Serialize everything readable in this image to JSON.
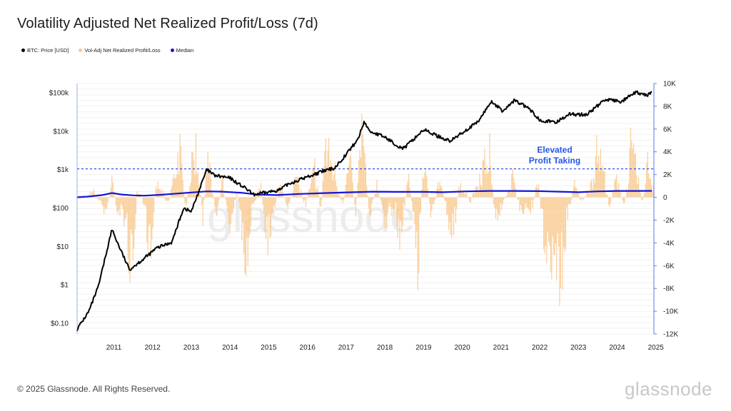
{
  "title": "Volatility Adjusted Net Realized Profit/Loss (7d)",
  "legend": [
    {
      "label": "BTC: Price [USD]",
      "color": "#000000"
    },
    {
      "label": "Vol-Adj Net Realized Profit/Loss",
      "color": "#f9c98e"
    },
    {
      "label": "Median",
      "color": "#1515d8"
    }
  ],
  "footer": "© 2025 Glassnode. All Rights Reserved.",
  "brand": "glassnode",
  "chart_data": {
    "type": "line",
    "title": "Volatility Adjusted Net Realized Profit/Loss (7d)",
    "x_ticks": [
      "2011",
      "2012",
      "2013",
      "2014",
      "2015",
      "2016",
      "2017",
      "2018",
      "2019",
      "2020",
      "2021",
      "2022",
      "2023",
      "2024",
      "2025"
    ],
    "y_left": {
      "scale": "log",
      "ticks": [
        "$100k",
        "$10k",
        "$1k",
        "$100",
        "$10",
        "$1",
        "$0.10"
      ],
      "range": [
        0.1,
        100000
      ]
    },
    "y_right": {
      "ticks": [
        "10K",
        "8K",
        "6K",
        "4K",
        "2K",
        "0",
        "-2K",
        "-4K",
        "-6K",
        "-8K",
        "-10K",
        "-12K"
      ],
      "range": [
        -12000,
        10000
      ]
    },
    "threshold": {
      "value": 2500,
      "style": "dashed",
      "color": "#2457e6"
    },
    "annotation": {
      "line1": "Elevated",
      "line2": "Profit Taking",
      "color": "#2457e6"
    },
    "series": [
      {
        "name": "BTC: Price [USD]",
        "axis": "left",
        "color": "#000000",
        "points": [
          [
            2010.55,
            0.07
          ],
          [
            2010.85,
            0.2
          ],
          [
            2011.1,
            0.9
          ],
          [
            2011.45,
            28
          ],
          [
            2011.6,
            12
          ],
          [
            2011.9,
            2.5
          ],
          [
            2012.3,
            5
          ],
          [
            2012.6,
            9
          ],
          [
            2013.0,
            13
          ],
          [
            2013.3,
            100
          ],
          [
            2013.5,
            80
          ],
          [
            2013.9,
            1000
          ],
          [
            2014.1,
            700
          ],
          [
            2014.5,
            600
          ],
          [
            2014.95,
            300
          ],
          [
            2015.1,
            220
          ],
          [
            2015.5,
            260
          ],
          [
            2015.8,
            300
          ],
          [
            2016.0,
            420
          ],
          [
            2016.5,
            650
          ],
          [
            2016.9,
            900
          ],
          [
            2017.2,
            1100
          ],
          [
            2017.5,
            2500
          ],
          [
            2017.8,
            6000
          ],
          [
            2017.97,
            18000
          ],
          [
            2018.1,
            10000
          ],
          [
            2018.5,
            7000
          ],
          [
            2018.9,
            3800
          ],
          [
            2019.0,
            3600
          ],
          [
            2019.5,
            11000
          ],
          [
            2019.9,
            7200
          ],
          [
            2020.2,
            5500
          ],
          [
            2020.5,
            9200
          ],
          [
            2020.9,
            17000
          ],
          [
            2021.25,
            60000
          ],
          [
            2021.55,
            33000
          ],
          [
            2021.85,
            64000
          ],
          [
            2022.2,
            40000
          ],
          [
            2022.5,
            20000
          ],
          [
            2022.9,
            16500
          ],
          [
            2023.25,
            28000
          ],
          [
            2023.7,
            26500
          ],
          [
            2023.95,
            42000
          ],
          [
            2024.2,
            68000
          ],
          [
            2024.6,
            58000
          ],
          [
            2024.9,
            90000
          ],
          [
            2025.0,
            102000
          ],
          [
            2025.25,
            84000
          ],
          [
            2025.4,
            104000
          ]
        ]
      },
      {
        "name": "Vol-Adj Net Realized Profit/Loss",
        "axis": "right",
        "color": "#f9c98e",
        "points": [
          [
            2010.8,
            150
          ],
          [
            2011.0,
            600
          ],
          [
            2011.3,
            -1800
          ],
          [
            2011.45,
            2100
          ],
          [
            2011.6,
            -2000
          ],
          [
            2011.8,
            -2500
          ],
          [
            2011.95,
            -11000
          ],
          [
            2012.1,
            1000
          ],
          [
            2012.3,
            -1500
          ],
          [
            2012.4,
            -8500
          ],
          [
            2012.6,
            1800
          ],
          [
            2012.9,
            -700
          ],
          [
            2013.0,
            1500
          ],
          [
            2013.2,
            6500
          ],
          [
            2013.35,
            -2000
          ],
          [
            2013.6,
            7200
          ],
          [
            2013.8,
            -2300
          ],
          [
            2013.9,
            5500
          ],
          [
            2014.15,
            -2500
          ],
          [
            2014.3,
            2200
          ],
          [
            2014.5,
            -3500
          ],
          [
            2014.7,
            1100
          ],
          [
            2014.9,
            -8600
          ],
          [
            2015.1,
            -1000
          ],
          [
            2015.3,
            1400
          ],
          [
            2015.45,
            -5600
          ],
          [
            2015.6,
            -2500
          ],
          [
            2015.8,
            1500
          ],
          [
            2016.0,
            -1500
          ],
          [
            2016.2,
            2800
          ],
          [
            2016.45,
            -1200
          ],
          [
            2016.7,
            4000
          ],
          [
            2016.85,
            -2300
          ],
          [
            2016.95,
            6800
          ],
          [
            2017.2,
            3500
          ],
          [
            2017.4,
            -1400
          ],
          [
            2017.6,
            5000
          ],
          [
            2017.75,
            -2200
          ],
          [
            2017.9,
            9400
          ],
          [
            2018.1,
            -2200
          ],
          [
            2018.3,
            1800
          ],
          [
            2018.5,
            -3200
          ],
          [
            2018.75,
            -1500
          ],
          [
            2018.9,
            -5000
          ],
          [
            2019.1,
            2500
          ],
          [
            2019.25,
            -2600
          ],
          [
            2019.35,
            -9200
          ],
          [
            2019.5,
            5400
          ],
          [
            2019.7,
            -3200
          ],
          [
            2019.9,
            2500
          ],
          [
            2020.1,
            -1800
          ],
          [
            2020.25,
            -5200
          ],
          [
            2020.45,
            2400
          ],
          [
            2020.7,
            -700
          ],
          [
            2020.95,
            2800
          ],
          [
            2021.2,
            6500
          ],
          [
            2021.35,
            -3200
          ],
          [
            2021.55,
            -900
          ],
          [
            2021.8,
            2800
          ],
          [
            2022.0,
            -1800
          ],
          [
            2022.3,
            -1300
          ],
          [
            2022.45,
            2400
          ],
          [
            2022.6,
            -4500
          ],
          [
            2022.75,
            -8000
          ],
          [
            2022.9,
            -7200
          ],
          [
            2023.05,
            -11200
          ],
          [
            2023.2,
            -2800
          ],
          [
            2023.4,
            1500
          ],
          [
            2023.6,
            -800
          ],
          [
            2023.85,
            2300
          ],
          [
            2024.0,
            6700
          ],
          [
            2024.15,
            3200
          ],
          [
            2024.3,
            -1200
          ],
          [
            2024.5,
            2600
          ],
          [
            2024.7,
            -1200
          ],
          [
            2024.85,
            6200
          ],
          [
            2025.0,
            3600
          ],
          [
            2025.15,
            -800
          ],
          [
            2025.3,
            5000
          ],
          [
            2025.4,
            1500
          ]
        ]
      },
      {
        "name": "Median",
        "axis": "right",
        "color": "#1515d8",
        "points": [
          [
            2010.55,
            0
          ],
          [
            2010.8,
            50
          ],
          [
            2011.2,
            200
          ],
          [
            2011.45,
            380
          ],
          [
            2011.7,
            250
          ],
          [
            2012.0,
            170
          ],
          [
            2012.3,
            150
          ],
          [
            2012.7,
            220
          ],
          [
            2013.0,
            300
          ],
          [
            2013.4,
            400
          ],
          [
            2013.9,
            520
          ],
          [
            2014.3,
            500
          ],
          [
            2014.8,
            400
          ],
          [
            2015.2,
            250
          ],
          [
            2015.7,
            200
          ],
          [
            2016.3,
            300
          ],
          [
            2017.0,
            380
          ],
          [
            2017.6,
            440
          ],
          [
            2018.2,
            500
          ],
          [
            2018.8,
            480
          ],
          [
            2019.5,
            480
          ],
          [
            2020.0,
            450
          ],
          [
            2020.6,
            520
          ],
          [
            2021.2,
            560
          ],
          [
            2021.9,
            560
          ],
          [
            2022.5,
            540
          ],
          [
            2023.0,
            500
          ],
          [
            2023.5,
            450
          ],
          [
            2024.0,
            520
          ],
          [
            2024.5,
            560
          ],
          [
            2025.0,
            560
          ],
          [
            2025.4,
            570
          ]
        ]
      }
    ]
  }
}
